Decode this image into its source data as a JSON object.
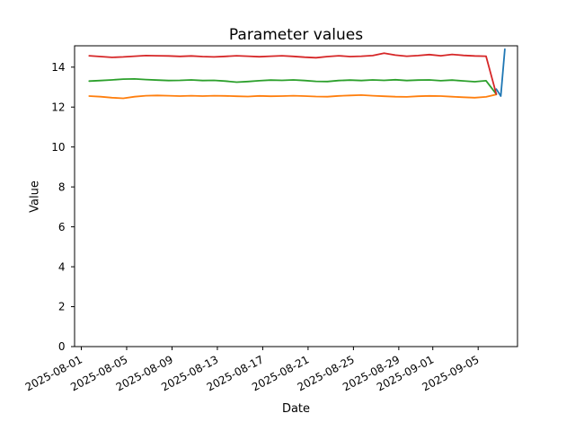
{
  "chart_data": {
    "type": "line",
    "title": "Parameter values",
    "xlabel": "Date",
    "ylabel": "Value",
    "grid": false,
    "legend": "none",
    "x_axis": {
      "unit": "days since 2025-08-01",
      "ticks": [
        {
          "day": 0,
          "label": "2025-08-01"
        },
        {
          "day": 4,
          "label": "2025-08-05"
        },
        {
          "day": 8,
          "label": "2025-08-09"
        },
        {
          "day": 12,
          "label": "2025-08-13"
        },
        {
          "day": 16,
          "label": "2025-08-17"
        },
        {
          "day": 20,
          "label": "2025-08-21"
        },
        {
          "day": 24,
          "label": "2025-08-25"
        },
        {
          "day": 28,
          "label": "2025-08-29"
        },
        {
          "day": 31,
          "label": "2025-09-01"
        },
        {
          "day": 35,
          "label": "2025-09-05"
        }
      ],
      "range_days": [
        -0.56,
        38.57
      ]
    },
    "y_axis": {
      "min": 0,
      "max": 15.07,
      "ticks": [
        0,
        2,
        4,
        6,
        8,
        10,
        12,
        14
      ]
    },
    "x_days": [
      0.7,
      1.7,
      2.7,
      3.7,
      4.7,
      5.7,
      6.7,
      7.7,
      8.7,
      9.7,
      10.7,
      11.7,
      12.7,
      13.7,
      14.7,
      15.7,
      16.7,
      17.7,
      18.7,
      19.7,
      20.7,
      21.7,
      22.7,
      23.7,
      24.7,
      25.7,
      26.7,
      27.7,
      28.7,
      29.7,
      30.7,
      31.7,
      32.7,
      33.7,
      34.7,
      35.7,
      36.6
    ],
    "series": [
      {
        "name": "series-1-blue",
        "color": "#1f77b4",
        "x": [
          36.6,
          37.0,
          37.35
        ],
        "y": [
          12.9,
          12.55,
          14.9
        ]
      },
      {
        "name": "series-2-orange",
        "color": "#ff7f0e",
        "y": [
          12.55,
          12.52,
          12.47,
          12.44,
          12.52,
          12.57,
          12.58,
          12.57,
          12.55,
          12.57,
          12.55,
          12.57,
          12.56,
          12.54,
          12.53,
          12.56,
          12.54,
          12.55,
          12.57,
          12.55,
          12.53,
          12.52,
          12.56,
          12.58,
          12.6,
          12.57,
          12.54,
          12.52,
          12.51,
          12.54,
          12.56,
          12.55,
          12.52,
          12.49,
          12.47,
          12.51,
          12.63
        ]
      },
      {
        "name": "series-3-green",
        "color": "#2ca02c",
        "y": [
          13.3,
          13.33,
          13.36,
          13.4,
          13.41,
          13.38,
          13.35,
          13.33,
          13.34,
          13.36,
          13.33,
          13.34,
          13.3,
          13.25,
          13.28,
          13.32,
          13.35,
          13.34,
          13.36,
          13.33,
          13.29,
          13.28,
          13.33,
          13.35,
          13.33,
          13.36,
          13.34,
          13.37,
          13.33,
          13.35,
          13.36,
          13.32,
          13.35,
          13.31,
          13.27,
          13.32,
          12.65
        ]
      },
      {
        "name": "series-4-red",
        "color": "#d62728",
        "y": [
          14.57,
          14.53,
          14.49,
          14.51,
          14.55,
          14.58,
          14.57,
          14.56,
          14.54,
          14.56,
          14.53,
          14.51,
          14.54,
          14.57,
          14.55,
          14.52,
          14.55,
          14.57,
          14.54,
          14.5,
          14.47,
          14.53,
          14.57,
          14.53,
          14.55,
          14.58,
          14.7,
          14.6,
          14.55,
          14.58,
          14.63,
          14.57,
          14.64,
          14.59,
          14.56,
          14.55,
          12.65
        ]
      }
    ]
  }
}
